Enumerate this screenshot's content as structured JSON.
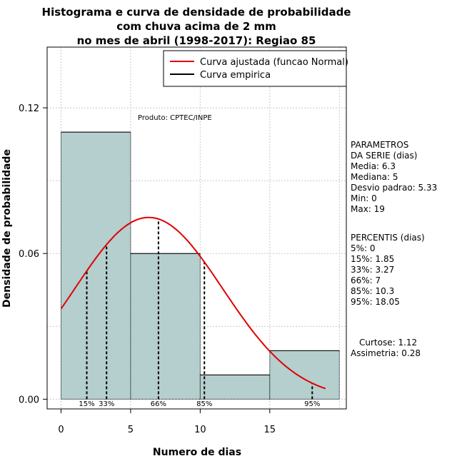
{
  "chart_data": {
    "type": "histogram",
    "title_lines": [
      "Histograma e curva de densidade de probabilidade",
      "com chuva acima de 2 mm",
      "no mes de abril (1998-2017): Regiao 85"
    ],
    "xlabel": "Numero de dias",
    "ylabel": "Densidade de probabilidade",
    "xlim": [
      -1,
      20.5
    ],
    "ylim": [
      -0.004,
      0.145
    ],
    "x_ticks": [
      0,
      5,
      10,
      15
    ],
    "y_ticks": [
      0.0,
      0.06,
      0.12
    ],
    "y_tick_labels": [
      "0.00",
      "0.06",
      "0.12"
    ],
    "grid": true,
    "bins": [
      {
        "x0": 0,
        "x1": 5,
        "density": 0.11
      },
      {
        "x0": 5,
        "x1": 10,
        "density": 0.06
      },
      {
        "x0": 10,
        "x1": 15,
        "density": 0.01
      },
      {
        "x0": 15,
        "x1": 20,
        "density": 0.02
      }
    ],
    "bar_color": "#b5cece",
    "normal_curve": {
      "name": "Curva ajustada (funcao Normal)",
      "mean": 6.3,
      "sd": 5.33,
      "x_range": [
        0,
        19
      ],
      "color": "#e00000"
    },
    "empirical_curve": {
      "name": "Curva empirica",
      "color": "#000000"
    },
    "percentile_markers": [
      {
        "label": "15%",
        "x": 1.85
      },
      {
        "label": "33%",
        "x": 3.27
      },
      {
        "label": "66%",
        "x": 7
      },
      {
        "label": "85%",
        "x": 10.3
      },
      {
        "label": "95%",
        "x": 18.05
      }
    ],
    "annotation": "Produto: CPTEC/INPE",
    "legend_position": "top-right",
    "legend": [
      "Curva ajustada (funcao Normal)",
      "Curva empirica"
    ]
  },
  "side_panel": {
    "parametros_lines": [
      "PARAMETROS",
      "DA SERIE (dias)",
      "   Media: 6.3",
      "   Mediana: 5",
      "   Desvio padrao: 5.33",
      "   Min: 0",
      "   Max: 19"
    ],
    "percentis_lines": [
      "PERCENTIS (dias)",
      "   5%: 0",
      "   15%: 1.85",
      "   33%: 3.27",
      "   66%: 7",
      "   85%: 10.3",
      "   95%: 18.05"
    ],
    "curtose": "Curtose: 1.12",
    "assimetria": "Assimetria: 0.28"
  }
}
